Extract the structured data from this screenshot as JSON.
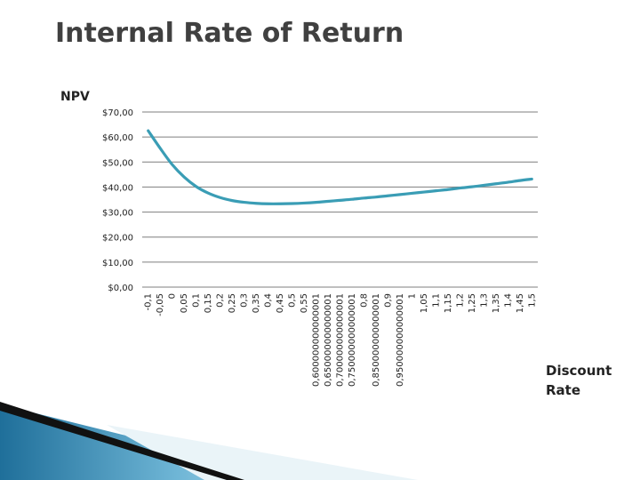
{
  "slide": {
    "title": "Internal Rate of Return"
  },
  "chart_data": {
    "type": "line",
    "title": "",
    "ylabel": "NPV",
    "xlabel_lines": [
      "Discount",
      "Rate"
    ],
    "ylim": [
      0,
      70
    ],
    "yticks": [
      0,
      10,
      20,
      30,
      40,
      50,
      60,
      70
    ],
    "ytick_labels": [
      "$0,00",
      "$10,00",
      "$20,00",
      "$30,00",
      "$40,00",
      "$50,00",
      "$60,00",
      "$70,00"
    ],
    "grid": true,
    "line_color": "#3a9db5",
    "grid_color": "#7f7f7f",
    "x_tick_labels": [
      "-0,1",
      "-0,05",
      "0",
      "0,05",
      "0,1",
      "0,15",
      "0,2",
      "0,25",
      "0,3",
      "0,35",
      "0,4",
      "0,45",
      "0,5",
      "0,55",
      "0,600000000000001",
      "0,650000000000001",
      "0,700000000000001",
      "0,750000000000001",
      "0,8",
      "0,850000000000001",
      "0,9",
      "0,950000000000001",
      "1",
      "1,05",
      "1,1",
      "1,15",
      "1,2",
      "1,25",
      "1,3",
      "1,35",
      "1,4",
      "1,45",
      "1,5"
    ],
    "x": [
      -0.1,
      -0.05,
      0,
      0.05,
      0.1,
      0.15,
      0.2,
      0.25,
      0.3,
      0.35,
      0.4,
      0.45,
      0.5,
      0.55,
      0.6,
      0.65,
      0.7,
      0.75,
      0.8,
      0.85,
      0.9,
      0.95,
      1,
      1.05,
      1.1,
      1.15,
      1.2,
      1.25,
      1.3,
      1.35,
      1.4,
      1.45,
      1.5
    ],
    "series": [
      {
        "name": "",
        "values": [
          62.5,
          55.5,
          49.0,
          44.0,
          40.2,
          37.6,
          35.8,
          34.6,
          33.9,
          33.5,
          33.3,
          33.3,
          33.4,
          33.6,
          33.9,
          34.3,
          34.7,
          35.1,
          35.6,
          36.0,
          36.5,
          37.0,
          37.5,
          38.0,
          38.5,
          39.0,
          39.6,
          40.1,
          40.7,
          41.3,
          41.9,
          42.6,
          43.2
        ]
      }
    ]
  }
}
